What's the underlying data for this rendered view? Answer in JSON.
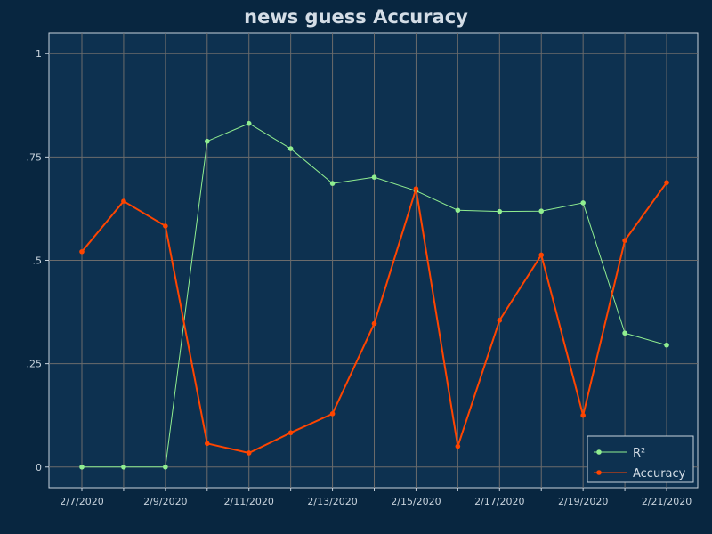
{
  "chart_data": {
    "type": "line",
    "title": "news guess Accuracy",
    "xlabel": "",
    "ylabel": "",
    "x": [
      "2/7/2020",
      "2/8/2020",
      "2/9/2020",
      "2/10/2020",
      "2/11/2020",
      "2/12/2020",
      "2/13/2020",
      "2/14/2020",
      "2/15/2020",
      "2/16/2020",
      "2/17/2020",
      "2/18/2020",
      "2/19/2020",
      "2/20/2020",
      "2/21/2020"
    ],
    "x_tick_labels": [
      "2/7/2020",
      "2/9/2020",
      "2/11/2020",
      "2/13/2020",
      "2/15/2020",
      "2/17/2020",
      "2/19/2020",
      "2/21/2020"
    ],
    "x_tick_index": [
      0,
      2,
      4,
      6,
      8,
      10,
      12,
      14
    ],
    "ylim": [
      -0.05,
      1.05
    ],
    "y_ticks": [
      0,
      0.25,
      0.5,
      0.75,
      1
    ],
    "y_tick_labels": [
      "0",
      ".25",
      ".5",
      ".75",
      "1"
    ],
    "grid": true,
    "legend_position": "bottom-right",
    "series": [
      {
        "name": "R²",
        "color": "#90ee90",
        "values": [
          0,
          0,
          0,
          0.788,
          0.831,
          0.77,
          0.686,
          0.701,
          0.668,
          0.621,
          0.618,
          0.619,
          0.639,
          0.324,
          0.295
        ]
      },
      {
        "name": "Accuracy",
        "color": "#ff4500",
        "values": [
          0.521,
          0.643,
          0.583,
          0.057,
          0.034,
          0.083,
          0.129,
          0.347,
          0.673,
          0.05,
          0.355,
          0.513,
          0.125,
          0.548,
          0.688
        ]
      }
    ]
  },
  "colors": {
    "background": "#082640",
    "plot_background": "#0d3150",
    "grid": "#6b6b6b",
    "axis": "#c8d3dd"
  }
}
